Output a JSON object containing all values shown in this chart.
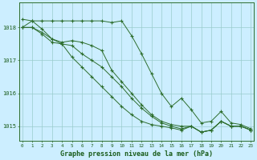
{
  "background_color": "#cceeff",
  "grid_color": "#99cccc",
  "line_color": "#2d6e2d",
  "xlabel": "Graphe pression niveau de la mer (hPa)",
  "xlabel_color": "#1a5c1a",
  "tick_color": "#1a5c1a",
  "xlim": [
    -0.3,
    23.3
  ],
  "ylim": [
    1014.55,
    1018.75
  ],
  "yticks": [
    1015,
    1016,
    1017,
    1018
  ],
  "xticks": [
    0,
    1,
    2,
    3,
    4,
    5,
    6,
    7,
    8,
    9,
    10,
    11,
    12,
    13,
    14,
    15,
    16,
    17,
    18,
    19,
    20,
    21,
    22,
    23
  ],
  "series": [
    [
      1018.25,
      1018.2,
      1018.2,
      1018.2,
      1018.2,
      1018.2,
      1018.2,
      1018.2,
      1018.2,
      1018.15,
      1018.2,
      1017.75,
      1017.2,
      1016.6,
      1016.0,
      1015.6,
      1015.85,
      1015.5,
      1015.1,
      1015.15,
      1015.45,
      1015.1,
      1015.05,
      1014.92
    ],
    [
      1018.0,
      1018.2,
      1017.95,
      1017.65,
      1017.55,
      1017.6,
      1017.55,
      1017.45,
      1017.3,
      1016.7,
      1016.35,
      1016.0,
      1015.65,
      1015.35,
      1015.15,
      1015.05,
      1015.0,
      1015.0,
      1014.82,
      1014.88,
      1015.15,
      1015.0,
      1015.0,
      1014.88
    ],
    [
      1018.0,
      1018.0,
      1017.85,
      1017.65,
      1017.5,
      1017.45,
      1017.2,
      1017.0,
      1016.8,
      1016.5,
      1016.2,
      1015.85,
      1015.55,
      1015.3,
      1015.1,
      1015.0,
      1014.92,
      1015.0,
      1014.82,
      1014.88,
      1015.15,
      1015.0,
      1015.0,
      1014.88
    ],
    [
      1018.0,
      1018.0,
      1017.8,
      1017.55,
      1017.5,
      1017.1,
      1016.8,
      1016.5,
      1016.2,
      1015.9,
      1015.6,
      1015.35,
      1015.15,
      1015.05,
      1015.0,
      1014.95,
      1014.88,
      1015.0,
      1014.82,
      1014.88,
      1015.15,
      1015.0,
      1015.0,
      1014.88
    ]
  ]
}
